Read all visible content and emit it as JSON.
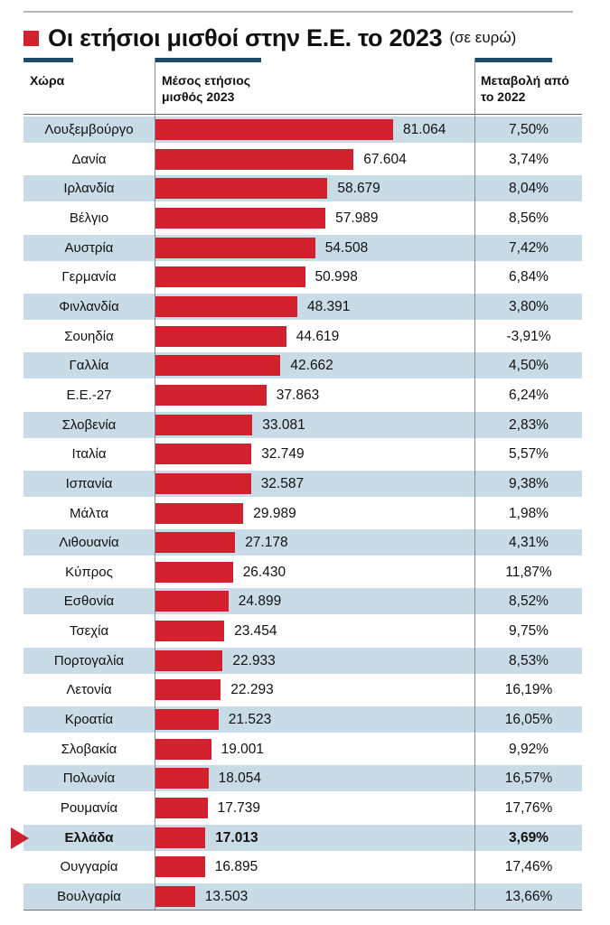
{
  "title": "Οι ετήσιοι μισθοί στην Ε.Ε. το 2023",
  "subtitle": "(σε ευρώ)",
  "headers": {
    "country": "Χώρα",
    "salary": "Μέσος ετήσιος μισθός 2023",
    "change": "Μεταβολή από το 2022"
  },
  "colors": {
    "bar": "#d2202e",
    "row_shade": "#c9dbe7",
    "header_rule": "#1f4b66"
  },
  "highlight_country": "Ελλάδα",
  "chart_data": {
    "type": "bar",
    "orientation": "horizontal",
    "unit": "ευρώ",
    "xlim": [
      0,
      81064
    ],
    "categories": [
      "Λουξεμβούργο",
      "Δανία",
      "Ιρλανδία",
      "Βέλγιο",
      "Αυστρία",
      "Γερμανία",
      "Φινλανδία",
      "Σουηδία",
      "Γαλλία",
      "Ε.Ε.-27",
      "Σλοβενία",
      "Ιταλία",
      "Ισπανία",
      "Μάλτα",
      "Λιθουανία",
      "Κύπρος",
      "Εσθονία",
      "Τσεχία",
      "Πορτογαλία",
      "Λετονία",
      "Κροατία",
      "Σλοβακία",
      "Πολωνία",
      "Ρουμανία",
      "Ελλάδα",
      "Ουγγαρία",
      "Βουλγαρία"
    ],
    "values": [
      81064,
      67604,
      58679,
      57989,
      54508,
      50998,
      48391,
      44619,
      42662,
      37863,
      33081,
      32749,
      32587,
      29989,
      27178,
      26430,
      24899,
      23454,
      22933,
      22293,
      21523,
      19001,
      18054,
      17739,
      17013,
      16895,
      13503
    ],
    "value_labels": [
      "81.064",
      "67.604",
      "58.679",
      "57.989",
      "54.508",
      "50.998",
      "48.391",
      "44.619",
      "42.662",
      "37.863",
      "33.081",
      "32.749",
      "32.587",
      "29.989",
      "27.178",
      "26.430",
      "24.899",
      "23.454",
      "22.933",
      "22.293",
      "21.523",
      "19.001",
      "18.054",
      "17.739",
      "17.013",
      "16.895",
      "13.503"
    ],
    "change_values": [
      7.5,
      3.74,
      8.04,
      8.56,
      7.42,
      6.84,
      3.8,
      -3.91,
      4.5,
      6.24,
      2.83,
      5.57,
      9.38,
      1.98,
      4.31,
      11.87,
      8.52,
      9.75,
      8.53,
      16.19,
      16.05,
      9.92,
      16.57,
      17.76,
      3.69,
      17.46,
      13.66
    ],
    "change_labels": [
      "7,50%",
      "3,74%",
      "8,04%",
      "8,56%",
      "7,42%",
      "6,84%",
      "3,80%",
      "-3,91%",
      "4,50%",
      "6,24%",
      "2,83%",
      "5,57%",
      "9,38%",
      "1,98%",
      "4,31%",
      "11,87%",
      "8,52%",
      "9,75%",
      "8,53%",
      "16,19%",
      "16,05%",
      "9,92%",
      "16,57%",
      "17,76%",
      "3,69%",
      "17,46%",
      "13,66%"
    ]
  }
}
